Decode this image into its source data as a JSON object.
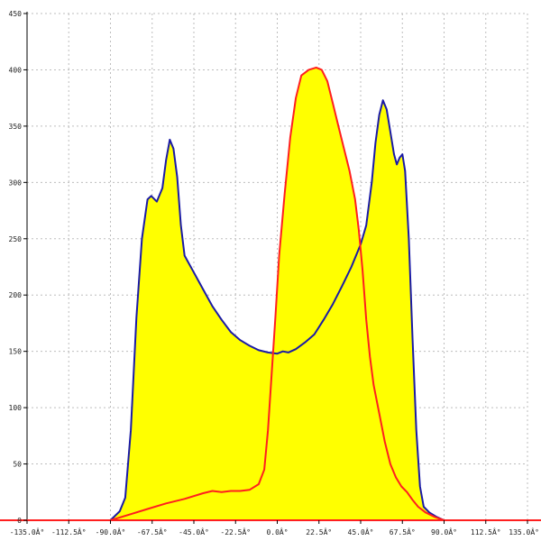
{
  "chart_data": {
    "type": "area",
    "title": "",
    "xlabel": "",
    "ylabel": "",
    "xlim": [
      -135,
      135
    ],
    "ylim": [
      0,
      450
    ],
    "grid": true,
    "x_ticks": [
      -135,
      -112.5,
      -90,
      -67.5,
      -45,
      -22.5,
      0,
      22.5,
      45,
      67.5,
      90,
      112.5,
      135
    ],
    "x_tick_labels": [
      "-135.0Â°",
      "-112.5Â°",
      "-90.0Â°",
      "-67.5Â°",
      "-45.0Â°",
      "-22.5Â°",
      "0.0Â°",
      "22.5Â°",
      "45.0Â°",
      "67.5Â°",
      "90.0Â°",
      "112.5Â°",
      "135.0Â°"
    ],
    "y_ticks": [
      0,
      50,
      100,
      150,
      200,
      250,
      300,
      350,
      400,
      450
    ],
    "y_tick_labels": [
      "0",
      "50",
      "100",
      "150",
      "200",
      "250",
      "300",
      "350",
      "400",
      "450"
    ],
    "series": [
      {
        "color": "#1a1aa6",
        "fill": "#ffff00",
        "points": [
          [
            -90,
            0
          ],
          [
            -85,
            8
          ],
          [
            -82,
            20
          ],
          [
            -79,
            80
          ],
          [
            -76,
            180
          ],
          [
            -73,
            250
          ],
          [
            -70,
            285
          ],
          [
            -68,
            288
          ],
          [
            -65,
            283
          ],
          [
            -62,
            295
          ],
          [
            -60,
            320
          ],
          [
            -58,
            338
          ],
          [
            -56,
            330
          ],
          [
            -54,
            305
          ],
          [
            -52,
            262
          ],
          [
            -50,
            235
          ],
          [
            -45,
            220
          ],
          [
            -40,
            205
          ],
          [
            -35,
            190
          ],
          [
            -30,
            178
          ],
          [
            -25,
            167
          ],
          [
            -20,
            160
          ],
          [
            -15,
            155
          ],
          [
            -10,
            151
          ],
          [
            -5,
            149
          ],
          [
            0,
            148
          ],
          [
            3,
            150
          ],
          [
            6,
            149
          ],
          [
            10,
            152
          ],
          [
            15,
            158
          ],
          [
            20,
            165
          ],
          [
            25,
            178
          ],
          [
            30,
            192
          ],
          [
            35,
            208
          ],
          [
            40,
            225
          ],
          [
            45,
            245
          ],
          [
            48,
            262
          ],
          [
            51,
            300
          ],
          [
            53,
            335
          ],
          [
            55,
            360
          ],
          [
            57,
            373
          ],
          [
            59,
            365
          ],
          [
            61,
            345
          ],
          [
            63,
            325
          ],
          [
            64.5,
            316
          ],
          [
            66,
            322
          ],
          [
            67.5,
            325
          ],
          [
            69,
            310
          ],
          [
            71,
            250
          ],
          [
            73,
            160
          ],
          [
            75,
            80
          ],
          [
            77,
            30
          ],
          [
            79,
            12
          ],
          [
            82,
            7
          ],
          [
            86,
            3
          ],
          [
            90,
            0
          ]
        ]
      },
      {
        "color": "#ff1f1f",
        "fill": "#ffff00",
        "points": [
          [
            -90,
            0
          ],
          [
            -80,
            5
          ],
          [
            -70,
            10
          ],
          [
            -60,
            15
          ],
          [
            -50,
            19
          ],
          [
            -40,
            24
          ],
          [
            -35,
            26
          ],
          [
            -30,
            25
          ],
          [
            -25,
            26
          ],
          [
            -20,
            26
          ],
          [
            -15,
            27
          ],
          [
            -10,
            32
          ],
          [
            -7,
            45
          ],
          [
            -5,
            80
          ],
          [
            -3,
            130
          ],
          [
            -1,
            180
          ],
          [
            1,
            235
          ],
          [
            4,
            290
          ],
          [
            7,
            340
          ],
          [
            10,
            375
          ],
          [
            13,
            395
          ],
          [
            17,
            400
          ],
          [
            21,
            402
          ],
          [
            24,
            400
          ],
          [
            27,
            390
          ],
          [
            30,
            370
          ],
          [
            33,
            350
          ],
          [
            36,
            330
          ],
          [
            39,
            310
          ],
          [
            42,
            285
          ],
          [
            44,
            258
          ],
          [
            46,
            222
          ],
          [
            48,
            178
          ],
          [
            50,
            145
          ],
          [
            52,
            120
          ],
          [
            55,
            95
          ],
          [
            58,
            70
          ],
          [
            61,
            50
          ],
          [
            64,
            38
          ],
          [
            67,
            30
          ],
          [
            70,
            25
          ],
          [
            73,
            18
          ],
          [
            76,
            12
          ],
          [
            80,
            7
          ],
          [
            85,
            3
          ],
          [
            90,
            0
          ]
        ]
      }
    ],
    "baseline_color": "#ff1f1f"
  }
}
